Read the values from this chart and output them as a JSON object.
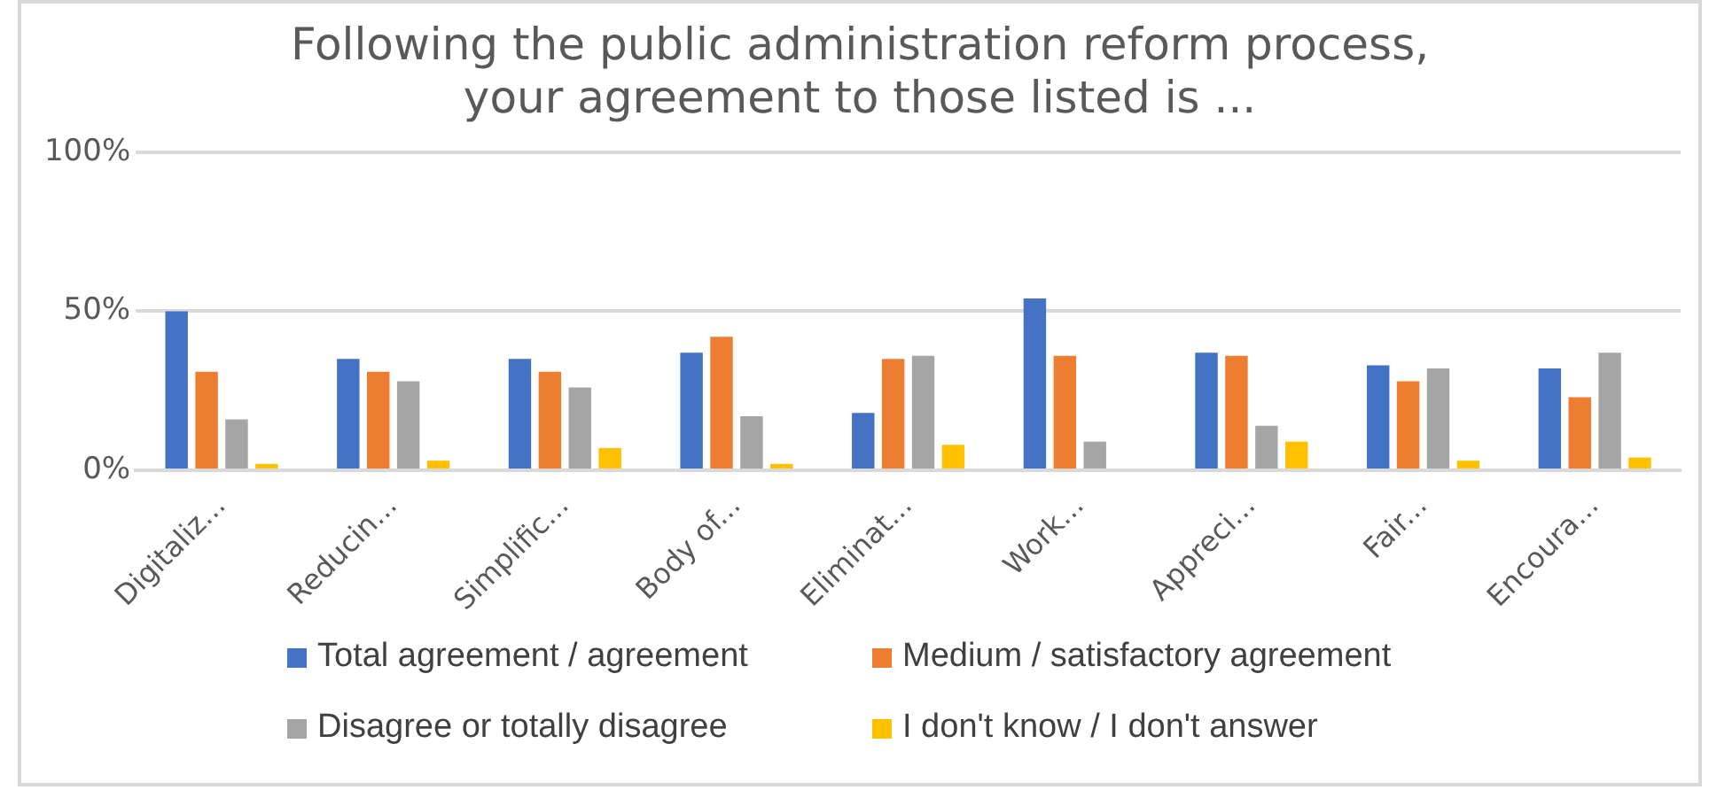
{
  "chart_data": {
    "type": "bar",
    "title": [
      "Following the public administration reform process,",
      "your agreement to those listed is ..."
    ],
    "categories": [
      "Digitaliz...",
      "Reducin...",
      "Simplific...",
      "Body of...",
      "Eliminat...",
      "Work...",
      "Appreci...",
      "Fair...",
      "Encoura..."
    ],
    "series": [
      {
        "name": "Total agreement / agreement",
        "color": "#4472c4",
        "values": [
          50,
          35,
          35,
          37,
          18,
          54,
          37,
          33,
          32
        ]
      },
      {
        "name": "Medium / satisfactory agreement",
        "color": "#ed7d31",
        "values": [
          31,
          31,
          31,
          42,
          35,
          36,
          36,
          28,
          23
        ]
      },
      {
        "name": "Disagree or totally disagree",
        "color": "#a5a5a5",
        "values": [
          16,
          28,
          26,
          17,
          36,
          9,
          14,
          32,
          37
        ]
      },
      {
        "name": "I don't know / I don't answer",
        "color": "#ffc000",
        "values": [
          2,
          3,
          7,
          2,
          8,
          0,
          9,
          3,
          4
        ]
      }
    ],
    "ylim": [
      0,
      100
    ],
    "yticks": [
      {
        "value": 0,
        "label": "0%"
      },
      {
        "value": 50,
        "label": "50%"
      },
      {
        "value": 100,
        "label": "100%"
      }
    ],
    "grid": "y",
    "legend": "bottom"
  }
}
